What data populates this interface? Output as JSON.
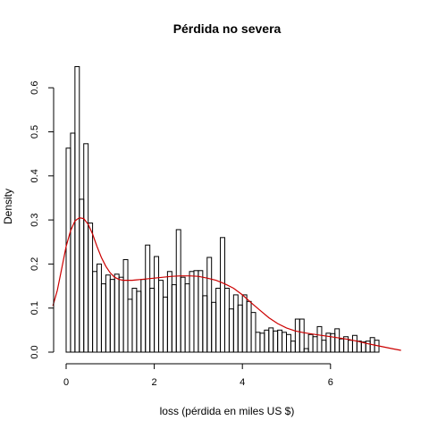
{
  "chart_data": {
    "type": "bar",
    "title": "Pérdida no severa",
    "xlabel": "loss (pérdida en miles US $)",
    "ylabel": "Density",
    "xlim": [
      -0.35,
      7.6
    ],
    "ylim": [
      0,
      0.65
    ],
    "x_ticks": [
      0,
      2,
      4,
      6
    ],
    "y_ticks": [
      0.0,
      0.1,
      0.2,
      0.3,
      0.4,
      0.5,
      0.6
    ],
    "grid": false,
    "legend": "none",
    "bin_width": 0.1,
    "bin_start": 0,
    "densities": [
      0.463,
      0.497,
      0.648,
      0.347,
      0.473,
      0.293,
      0.183,
      0.2,
      0.155,
      0.175,
      0.165,
      0.177,
      0.17,
      0.21,
      0.12,
      0.145,
      0.138,
      0.165,
      0.243,
      0.145,
      0.217,
      0.163,
      0.125,
      0.183,
      0.153,
      0.278,
      0.17,
      0.155,
      0.183,
      0.185,
      0.185,
      0.128,
      0.215,
      0.113,
      0.145,
      0.26,
      0.145,
      0.098,
      0.13,
      0.107,
      0.13,
      0.115,
      0.09,
      0.045,
      0.043,
      0.05,
      0.055,
      0.048,
      0.05,
      0.045,
      0.04,
      0.025,
      0.075,
      0.075,
      0.008,
      0.04,
      0.035,
      0.058,
      0.027,
      0.043,
      0.042,
      0.053,
      0.03,
      0.035,
      0.027,
      0.038,
      0.025,
      0.023,
      0.025,
      0.033,
      0.027
    ],
    "density_curve": {
      "color": "#cc0000",
      "x": [
        -0.3,
        -0.2,
        -0.1,
        0.0,
        0.1,
        0.2,
        0.3,
        0.4,
        0.5,
        0.6,
        0.7,
        0.8,
        0.9,
        1.0,
        1.1,
        1.2,
        1.3,
        1.4,
        1.5,
        1.6,
        1.7,
        1.8,
        1.9,
        2.0,
        2.2,
        2.4,
        2.6,
        2.8,
        3.0,
        3.2,
        3.4,
        3.6,
        3.8,
        4.0,
        4.2,
        4.4,
        4.6,
        4.8,
        5.0,
        5.2,
        5.4,
        5.6,
        5.8,
        6.0,
        6.2,
        6.4,
        6.6,
        6.8,
        7.0,
        7.2,
        7.4,
        7.6
      ],
      "y": [
        0.105,
        0.14,
        0.19,
        0.24,
        0.275,
        0.298,
        0.305,
        0.303,
        0.29,
        0.268,
        0.24,
        0.215,
        0.195,
        0.18,
        0.17,
        0.165,
        0.163,
        0.163,
        0.163,
        0.164,
        0.165,
        0.166,
        0.167,
        0.168,
        0.17,
        0.172,
        0.173,
        0.173,
        0.172,
        0.168,
        0.163,
        0.155,
        0.145,
        0.13,
        0.112,
        0.095,
        0.078,
        0.065,
        0.055,
        0.048,
        0.044,
        0.041,
        0.038,
        0.035,
        0.032,
        0.029,
        0.025,
        0.02,
        0.016,
        0.012,
        0.008,
        0.004
      ]
    }
  }
}
